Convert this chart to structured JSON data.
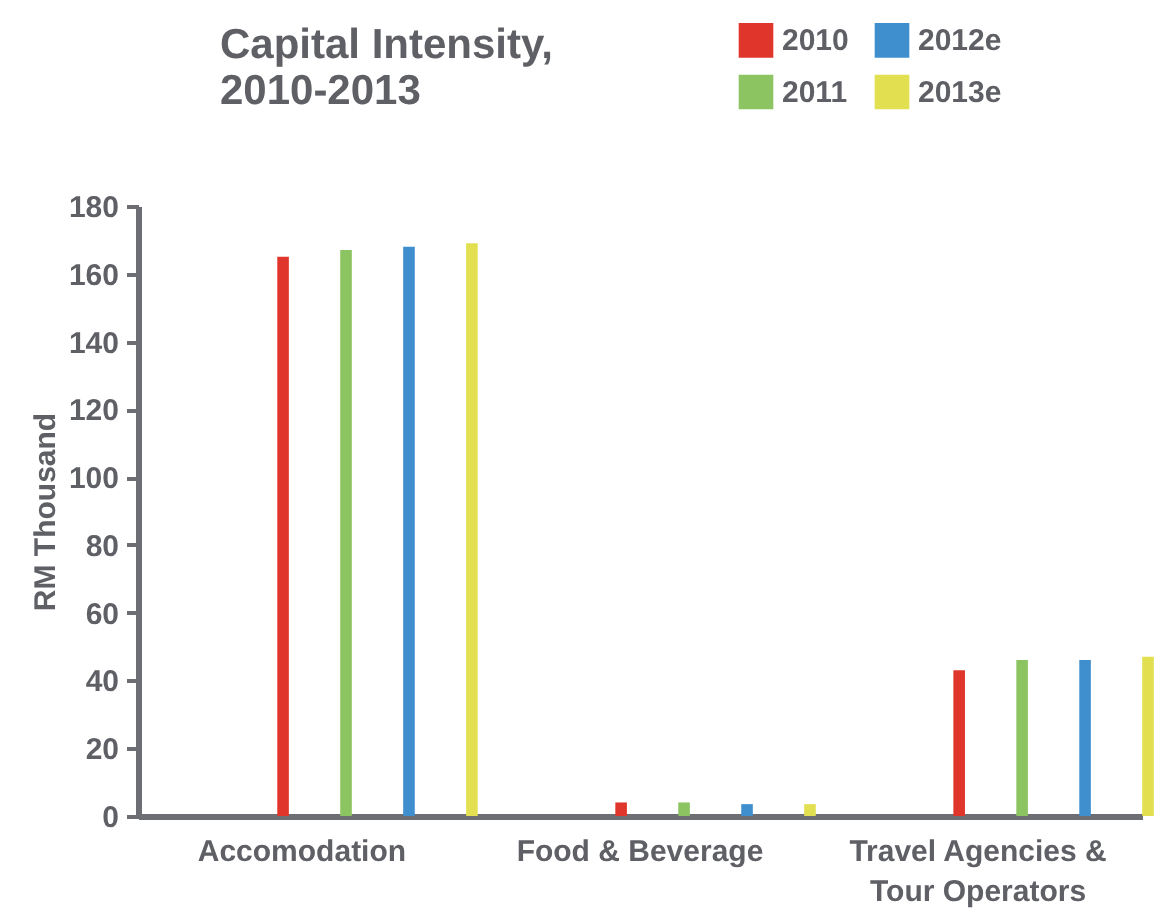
{
  "chart_data": {
    "type": "bar",
    "title": "Capital Intensity, 2010-2013",
    "ylabel": "RM Thousand",
    "categories": [
      "Accomodation",
      "Food & Beverage",
      "Travel Agencies & Tour Operators"
    ],
    "series": [
      {
        "name": "2010",
        "color": "#e0352b",
        "values": [
          165,
          4,
          43
        ]
      },
      {
        "name": "2011",
        "color": "#8cc461",
        "values": [
          167,
          4,
          46
        ]
      },
      {
        "name": "2012e",
        "color": "#3f8fcf",
        "values": [
          168,
          3.5,
          46
        ]
      },
      {
        "name": "2013e",
        "color": "#e2df50",
        "values": [
          169,
          3.5,
          47
        ]
      }
    ],
    "ylim": [
      0,
      180
    ],
    "yticks": [
      0,
      20,
      40,
      60,
      80,
      100,
      120,
      140,
      160,
      180
    ],
    "grid": false,
    "legend": "top right"
  }
}
